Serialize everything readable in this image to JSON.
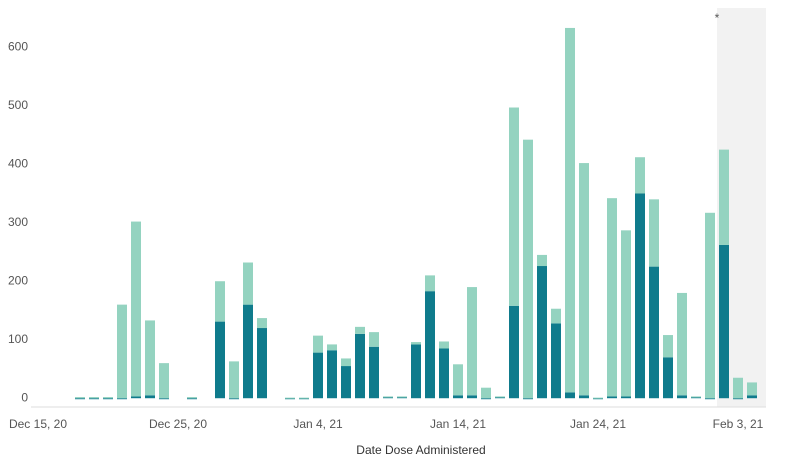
{
  "chart_data": {
    "type": "stacked_bar",
    "x_label": "Date Dose Administered",
    "annotation": "*",
    "categories": [
      "Dec 15, 20",
      null,
      null,
      null,
      null,
      null,
      null,
      null,
      null,
      null,
      "Dec 25, 20",
      null,
      null,
      null,
      null,
      null,
      null,
      null,
      null,
      null,
      "Jan 4, 21",
      null,
      null,
      null,
      null,
      null,
      null,
      null,
      null,
      null,
      "Jan 14, 21",
      null,
      null,
      null,
      null,
      null,
      null,
      null,
      null,
      null,
      "Jan 24, 21",
      null,
      null,
      null,
      null,
      null,
      null,
      null,
      null,
      null,
      "Feb 3, 21",
      null
    ],
    "series": [
      {
        "color": "#0f7b8c",
        "values": [
          null,
          null,
          null,
          0,
          0,
          0,
          0,
          3,
          5,
          0,
          null,
          0,
          null,
          131,
          0,
          160,
          120,
          null,
          0,
          0,
          78,
          82,
          55,
          110,
          88,
          3,
          3,
          92,
          183,
          85,
          5,
          5,
          0,
          3,
          158,
          0,
          226,
          128,
          10,
          5,
          0,
          3,
          3,
          350,
          225,
          70,
          5,
          3,
          0,
          262,
          0,
          5
        ]
      },
      {
        "color": "#94d3c0",
        "values": [
          null,
          null,
          null,
          2,
          2,
          2,
          160,
          299,
          128,
          60,
          null,
          2,
          null,
          69,
          63,
          72,
          17,
          null,
          1,
          1,
          29,
          10,
          13,
          12,
          25,
          0,
          0,
          4,
          27,
          12,
          53,
          185,
          18,
          0,
          339,
          442,
          19,
          25,
          623,
          397,
          1,
          339,
          284,
          62,
          115,
          38,
          175,
          0,
          317,
          163,
          35,
          22
        ]
      }
    ],
    "ylim": [
      -15,
      650
    ],
    "yticks": [
      0,
      100,
      200,
      300,
      400,
      500,
      600
    ],
    "grid": false
  }
}
